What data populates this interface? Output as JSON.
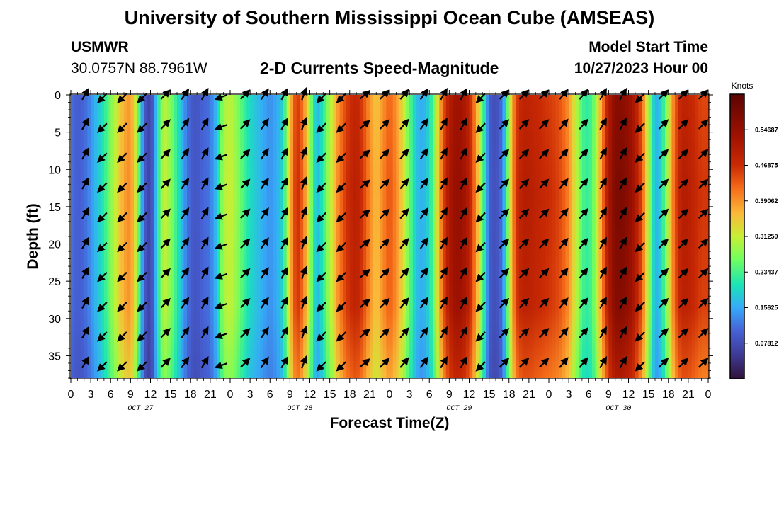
{
  "header": {
    "title": "University of Southern Mississippi Ocean Cube (AMSEAS)",
    "station_id": "USMWR",
    "station_coords": "30.0757N  88.7961W",
    "plot_title": "2-D Currents Speed-Magnitude",
    "model_start_label": "Model Start Time",
    "model_start_value": "10/27/2023 Hour 00"
  },
  "footer": {
    "title": "University of Southern Mississippi Ocean Cube (AMSEAS)"
  },
  "chart_data": {
    "type": "heatmap",
    "title": "2-D Currents Speed-Magnitude",
    "xlabel": "Forecast Time(Z)",
    "ylabel": "Depth (ft)",
    "colorbar_label": "Knots",
    "colorbar_ticks": [
      "0.07812",
      "0.15625",
      "0.23437",
      "0.31250",
      "0.39062",
      "0.46875",
      "0.54687"
    ],
    "colorbar_values": [
      0.078125,
      0.15625,
      0.234375,
      0.3125,
      0.390625,
      0.46875,
      0.546875
    ],
    "zlim": [
      0,
      0.625
    ],
    "xlim": [
      0,
      96
    ],
    "ylim": [
      0,
      38
    ],
    "y_ticks": [
      0,
      5,
      10,
      15,
      20,
      25,
      30,
      35
    ],
    "x_tick_labels": [
      "0",
      "3",
      "6",
      "9",
      "12",
      "15",
      "18",
      "21",
      "0",
      "3",
      "6",
      "9",
      "12",
      "15",
      "18",
      "21",
      "0",
      "3",
      "6",
      "9",
      "12",
      "15",
      "18",
      "21",
      "0",
      "3",
      "6",
      "9",
      "12",
      "15",
      "18",
      "21",
      "0"
    ],
    "day_labels": [
      "OCT 27",
      "OCT 28",
      "OCT 29",
      "OCT 30"
    ],
    "day_label_hours": [
      10.5,
      34.5,
      58.5,
      82.5
    ],
    "speed_profile_hours": [
      0,
      1,
      2,
      3,
      4,
      5,
      6,
      7,
      8,
      9,
      10,
      11,
      12,
      13,
      14,
      15,
      16,
      17,
      18,
      19,
      20,
      21,
      22,
      23,
      24,
      25,
      26,
      27,
      28,
      29,
      30,
      31,
      32,
      33,
      34,
      35,
      36,
      37,
      38,
      39,
      40,
      41,
      42,
      43,
      44,
      45,
      46,
      47,
      48,
      49,
      50,
      51,
      52,
      53,
      54,
      55,
      56,
      57,
      58,
      59,
      60,
      61,
      62,
      63,
      64,
      65,
      66,
      67,
      68,
      69,
      70,
      71,
      72,
      73,
      74,
      75,
      76,
      77,
      78,
      79,
      80,
      81,
      82,
      83,
      84,
      85,
      86,
      87,
      88,
      89,
      90,
      91,
      92,
      93,
      94,
      95,
      96
    ],
    "speed_profile_knots": [
      0.12,
      0.1,
      0.11,
      0.14,
      0.18,
      0.22,
      0.27,
      0.33,
      0.38,
      0.4,
      0.3,
      0.1,
      0.06,
      0.2,
      0.32,
      0.28,
      0.22,
      0.15,
      0.1,
      0.09,
      0.11,
      0.12,
      0.18,
      0.3,
      0.32,
      0.28,
      0.24,
      0.2,
      0.18,
      0.16,
      0.14,
      0.16,
      0.2,
      0.36,
      0.48,
      0.42,
      0.3,
      0.16,
      0.22,
      0.3,
      0.38,
      0.44,
      0.48,
      0.5,
      0.46,
      0.4,
      0.36,
      0.4,
      0.44,
      0.4,
      0.34,
      0.26,
      0.18,
      0.16,
      0.2,
      0.3,
      0.44,
      0.52,
      0.55,
      0.54,
      0.5,
      0.4,
      0.26,
      0.1,
      0.08,
      0.12,
      0.3,
      0.46,
      0.5,
      0.5,
      0.49,
      0.48,
      0.47,
      0.46,
      0.44,
      0.4,
      0.32,
      0.24,
      0.22,
      0.28,
      0.4,
      0.52,
      0.58,
      0.58,
      0.56,
      0.52,
      0.44,
      0.3,
      0.16,
      0.2,
      0.32,
      0.44,
      0.5,
      0.5,
      0.48,
      0.46,
      0.46
    ],
    "vector_depths_ft": [
      0,
      4,
      8,
      12,
      16,
      20,
      24,
      28,
      32,
      36
    ],
    "vector_times_hours": [
      2,
      5,
      8,
      11,
      14,
      17,
      20,
      23,
      26,
      29,
      32,
      35,
      38,
      41,
      44,
      47,
      50,
      53,
      56,
      59,
      62,
      65,
      68,
      71,
      74,
      77,
      80,
      83,
      86,
      89,
      92,
      95
    ],
    "vector_direction_deg": [
      300,
      135,
      135,
      135,
      315,
      305,
      300,
      160,
      315,
      305,
      300,
      290,
      135,
      135,
      320,
      315,
      310,
      305,
      300,
      300,
      135,
      315,
      315,
      315,
      310,
      310,
      300,
      300,
      135,
      315,
      315,
      315
    ]
  }
}
